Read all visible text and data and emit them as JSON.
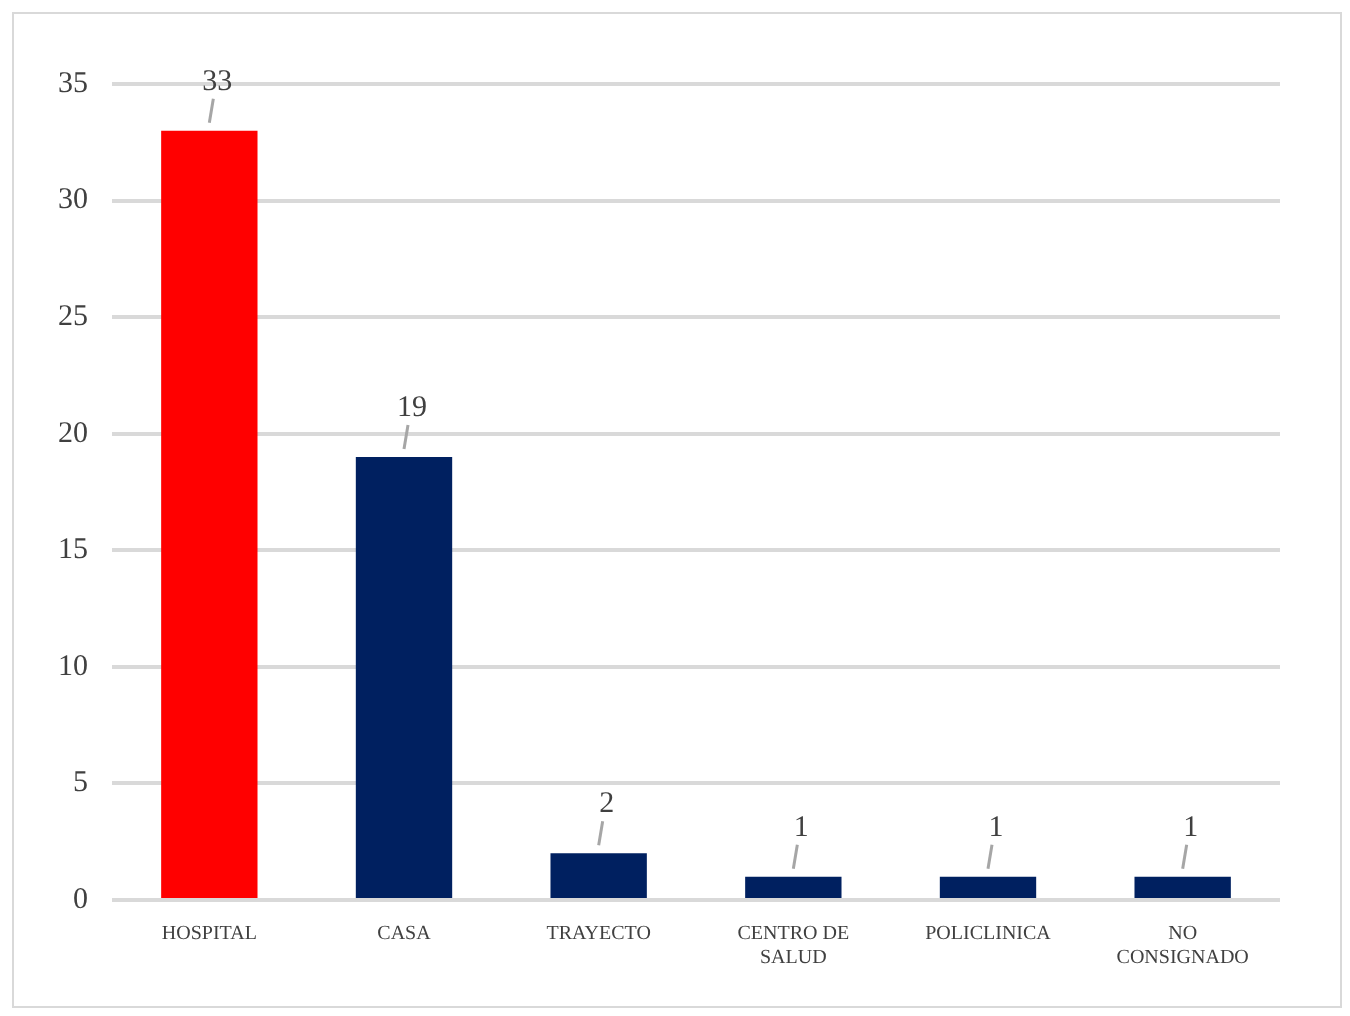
{
  "chart_data": {
    "type": "bar",
    "categories": [
      "HOSPITAL",
      "CASA",
      "TRAYECTO",
      "CENTRO DE SALUD",
      "POLICLINICA",
      "NO CONSIGNADO"
    ],
    "values": [
      33,
      19,
      2,
      1,
      1,
      1
    ],
    "colors": [
      "#ff0000",
      "#002060",
      "#002060",
      "#002060",
      "#002060",
      "#002060"
    ],
    "ylim": [
      0,
      35
    ],
    "yticks": [
      0,
      5,
      10,
      15,
      20,
      25,
      30,
      35
    ],
    "grid": "y",
    "data_labels": true,
    "legend": false
  }
}
